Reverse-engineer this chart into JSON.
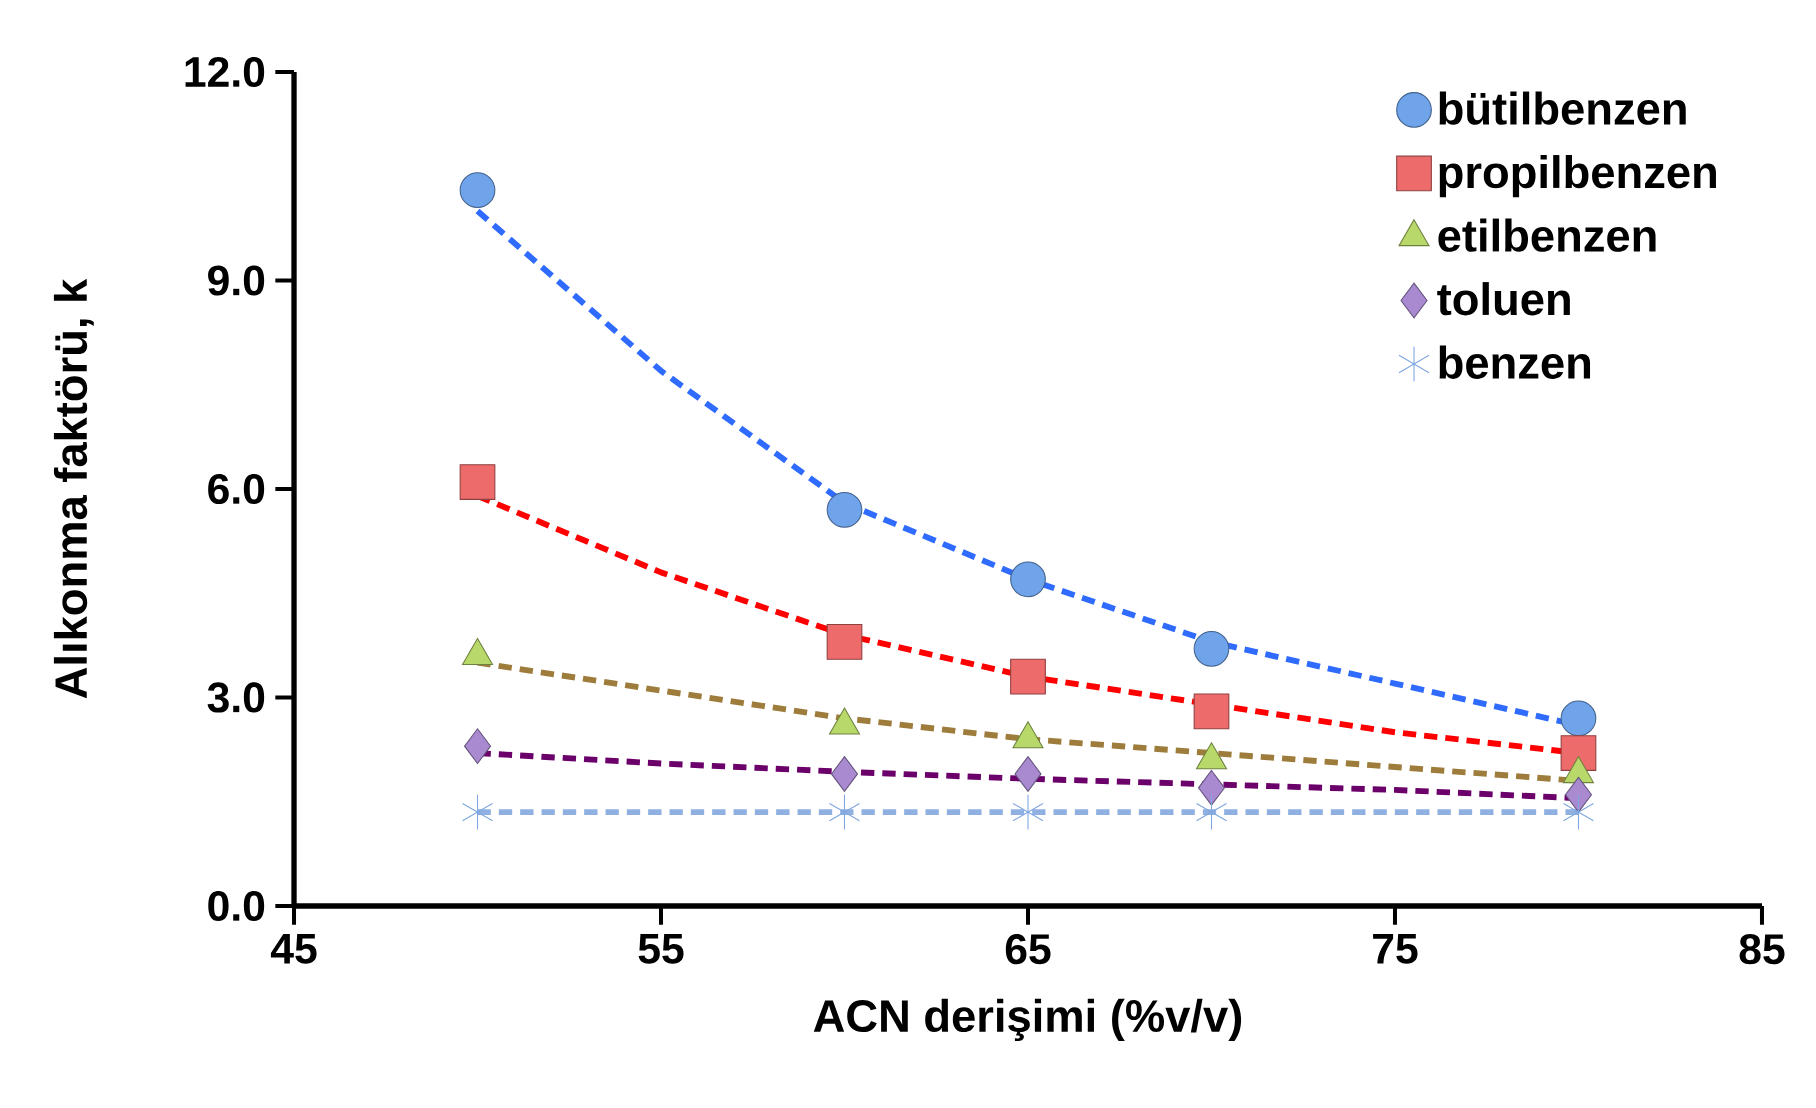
{
  "chart_data": {
    "type": "scatter",
    "xlabel": "ACN derişimi (%v/v)",
    "ylabel": "Alıkonma faktörü, k",
    "xlim": [
      45,
      85
    ],
    "xticks": [
      45,
      55,
      65,
      75,
      85
    ],
    "ylim": [
      0,
      12
    ],
    "yticks": [
      {
        "value": 0,
        "label": "0.0"
      },
      {
        "value": 3,
        "label": "3.0"
      },
      {
        "value": 6,
        "label": "6.0"
      },
      {
        "value": 9,
        "label": "9.0"
      },
      {
        "value": 12,
        "label": "12.0"
      }
    ],
    "legend": "top right",
    "series": [
      {
        "name": "bütilbenzen",
        "marker": "circle",
        "color": "#6fa3ea",
        "x": [
          50,
          60,
          65,
          70,
          80
        ],
        "values": [
          10.3,
          5.7,
          4.7,
          3.7,
          2.7
        ]
      },
      {
        "name": "propilbenzen",
        "marker": "square",
        "color": "#ee6b6b",
        "x": [
          50,
          60,
          65,
          70,
          80
        ],
        "values": [
          6.1,
          3.8,
          3.3,
          2.8,
          2.2
        ]
      },
      {
        "name": "etilbenzen",
        "marker": "triangle",
        "color": "#b8d86a",
        "x": [
          50,
          60,
          65,
          70,
          80
        ],
        "values": [
          3.6,
          2.6,
          2.4,
          2.1,
          1.9
        ]
      },
      {
        "name": "toluen",
        "marker": "diamond",
        "color": "#a98ad0",
        "x": [
          50,
          60,
          65,
          70,
          80
        ],
        "values": [
          2.3,
          1.9,
          1.9,
          1.7,
          1.6
        ]
      },
      {
        "name": "benzen",
        "marker": "cross",
        "color": "#7fa6e0",
        "x": [
          50,
          60,
          65,
          70,
          80
        ],
        "values": [
          1.35,
          1.35,
          1.35,
          1.35,
          1.35
        ]
      },
      {
        "type": "line",
        "line_style": "dashed",
        "marker": "none",
        "color": "#2f6bff",
        "x": [
          50,
          55,
          60,
          65,
          70,
          75,
          80
        ],
        "values": [
          10.0,
          7.7,
          5.8,
          4.7,
          3.8,
          3.2,
          2.6
        ]
      },
      {
        "type": "line",
        "line_style": "dashed",
        "marker": "none",
        "color": "#ff0000",
        "x": [
          50,
          55,
          60,
          65,
          70,
          75,
          80
        ],
        "values": [
          5.9,
          4.8,
          3.9,
          3.3,
          2.9,
          2.5,
          2.2
        ]
      },
      {
        "type": "line",
        "line_style": "dashed",
        "marker": "none",
        "color": "#9e7d3c",
        "x": [
          50,
          55,
          60,
          65,
          70,
          75,
          80
        ],
        "values": [
          3.5,
          3.1,
          2.7,
          2.4,
          2.2,
          2.0,
          1.8
        ]
      },
      {
        "type": "line",
        "line_style": "dashed",
        "marker": "none",
        "color": "#6b006b",
        "x": [
          50,
          55,
          60,
          65,
          70,
          75,
          80
        ],
        "values": [
          2.2,
          2.05,
          1.93,
          1.83,
          1.75,
          1.67,
          1.55
        ]
      },
      {
        "type": "line",
        "line_style": "dashed",
        "marker": "none",
        "color": "#8fb0e0",
        "x": [
          50,
          55,
          60,
          65,
          70,
          75,
          80
        ],
        "values": [
          1.35,
          1.35,
          1.35,
          1.35,
          1.35,
          1.35,
          1.35
        ]
      }
    ]
  }
}
